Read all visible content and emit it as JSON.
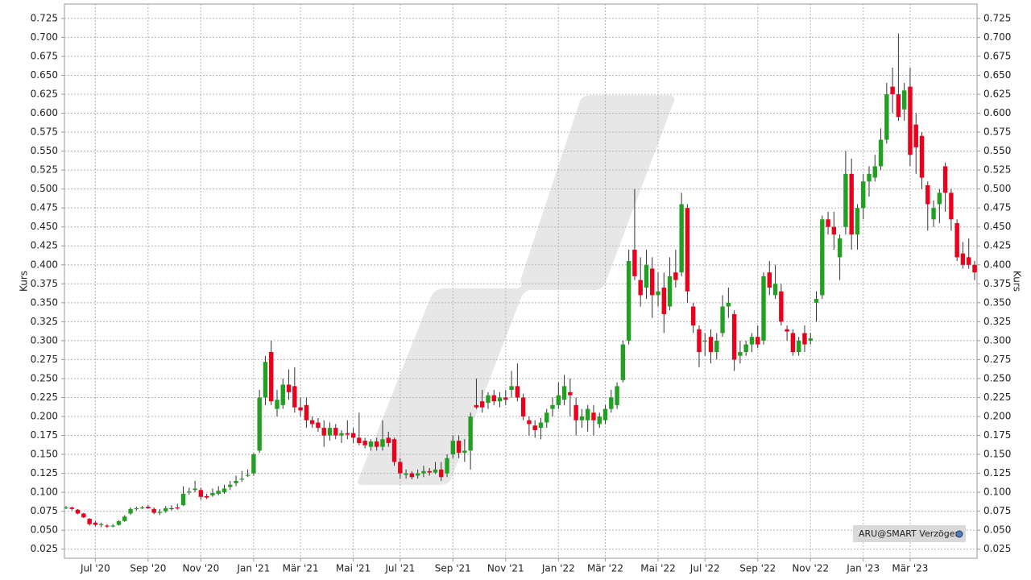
{
  "chart_data": {
    "type": "candlestick",
    "y_label": "Kurs",
    "source": "ARU@SMART Verzögert",
    "up_color": "#22a022",
    "down_color": "#e8001c",
    "ylim": [
      0.013,
      0.744
    ],
    "yticks": [
      {
        "value": 0.025,
        "label": "0.025"
      },
      {
        "value": 0.05,
        "label": "0.050"
      },
      {
        "value": 0.075,
        "label": "0.075"
      },
      {
        "value": 0.1,
        "label": "0.100"
      },
      {
        "value": 0.125,
        "label": "0.125"
      },
      {
        "value": 0.15,
        "label": "0.150"
      },
      {
        "value": 0.175,
        "label": "0.175"
      },
      {
        "value": 0.2,
        "label": "0.200"
      },
      {
        "value": 0.225,
        "label": "0.225"
      },
      {
        "value": 0.25,
        "label": "0.250"
      },
      {
        "value": 0.275,
        "label": "0.275"
      },
      {
        "value": 0.3,
        "label": "0.300"
      },
      {
        "value": 0.325,
        "label": "0.325"
      },
      {
        "value": 0.35,
        "label": "0.350"
      },
      {
        "value": 0.375,
        "label": "0.375"
      },
      {
        "value": 0.4,
        "label": "0.400"
      },
      {
        "value": 0.425,
        "label": "0.425"
      },
      {
        "value": 0.45,
        "label": "0.450"
      },
      {
        "value": 0.475,
        "label": "0.475"
      },
      {
        "value": 0.5,
        "label": "0.500"
      },
      {
        "value": 0.525,
        "label": "0.525"
      },
      {
        "value": 0.55,
        "label": "0.550"
      },
      {
        "value": 0.575,
        "label": "0.575"
      },
      {
        "value": 0.6,
        "label": "0.600"
      },
      {
        "value": 0.625,
        "label": "0.625"
      },
      {
        "value": 0.65,
        "label": "0.650"
      },
      {
        "value": 0.675,
        "label": "0.675"
      },
      {
        "value": 0.7,
        "label": "0.700"
      },
      {
        "value": 0.725,
        "label": "0.725"
      }
    ],
    "grid": true,
    "categories": [
      null,
      null,
      null,
      null,
      null,
      "Jul '20",
      null,
      null,
      null,
      null,
      null,
      null,
      null,
      null,
      "Sep '20",
      null,
      null,
      null,
      null,
      null,
      null,
      null,
      null,
      "Nov '20",
      null,
      null,
      null,
      null,
      null,
      null,
      null,
      null,
      "Jan '21",
      null,
      null,
      null,
      null,
      null,
      null,
      null,
      "Mär '21",
      null,
      null,
      null,
      null,
      null,
      null,
      null,
      null,
      "Mai '21",
      null,
      null,
      null,
      null,
      null,
      null,
      null,
      "Jul '21",
      null,
      null,
      null,
      null,
      null,
      null,
      null,
      null,
      "Sep '21",
      null,
      null,
      null,
      null,
      null,
      null,
      null,
      null,
      "Nov '21",
      null,
      null,
      null,
      null,
      null,
      null,
      null,
      null,
      "Jan '22",
      null,
      null,
      null,
      null,
      null,
      null,
      null,
      "Mär '22",
      null,
      null,
      null,
      null,
      null,
      null,
      null,
      null,
      "Mai '22",
      null,
      null,
      null,
      null,
      null,
      null,
      null,
      "Jul '22",
      null,
      null,
      null,
      null,
      null,
      null,
      null,
      null,
      "Sep '22",
      null,
      null,
      null,
      null,
      null,
      null,
      null,
      null,
      "Nov '22",
      null,
      null,
      null,
      null,
      null,
      null,
      null,
      null,
      "Jan '23",
      null,
      null,
      null,
      null,
      null,
      null,
      null,
      "Mär '23",
      null,
      null,
      null,
      null,
      null,
      null,
      null,
      null,
      null,
      null,
      null
    ],
    "open": [
      0.08,
      0.08,
      0.077,
      0.072,
      0.065,
      0.06,
      0.057,
      0.056,
      0.055,
      0.057,
      0.062,
      0.072,
      0.078,
      0.08,
      0.081,
      0.078,
      0.074,
      0.075,
      0.079,
      0.08,
      0.083,
      0.1,
      0.103,
      0.103,
      0.095,
      0.096,
      0.098,
      0.1,
      0.107,
      0.112,
      0.118,
      0.123,
      0.125,
      0.155,
      0.225,
      0.285,
      0.21,
      0.215,
      0.242,
      0.24,
      0.212,
      0.215,
      0.195,
      0.192,
      0.185,
      0.175,
      0.185,
      0.175,
      0.178,
      0.178,
      0.172,
      0.168,
      0.16,
      0.167,
      0.16,
      0.172,
      0.17,
      0.14,
      0.123,
      0.125,
      0.122,
      0.125,
      0.128,
      0.126,
      0.13,
      0.125,
      0.15,
      0.168,
      0.152,
      0.155,
      0.215,
      0.22,
      0.218,
      0.228,
      0.22,
      0.225,
      0.235,
      0.24,
      0.225,
      0.195,
      0.188,
      0.185,
      0.192,
      0.21,
      0.215,
      0.222,
      0.232,
      0.215,
      0.195,
      0.195,
      0.205,
      0.19,
      0.195,
      0.21,
      0.215,
      0.248,
      0.3,
      0.42,
      0.38,
      0.37,
      0.395,
      0.36,
      0.37,
      0.345,
      0.39,
      0.39,
      0.475,
      0.345,
      0.315,
      0.3,
      0.305,
      0.285,
      0.31,
      0.345,
      0.335,
      0.28,
      0.285,
      0.295,
      0.305,
      0.3,
      0.39,
      0.36,
      0.365,
      0.315,
      0.31,
      0.285,
      0.31,
      0.3,
      0.35,
      0.36,
      0.46,
      0.45,
      0.41,
      0.45,
      0.52,
      0.44,
      0.475,
      0.51,
      0.515,
      0.53,
      0.565,
      0.635,
      0.625,
      0.605,
      0.635,
      0.585,
      0.57,
      0.505,
      0.46,
      0.48,
      0.53,
      0.495,
      0.455,
      0.415,
      0.41,
      0.4
    ],
    "high": [
      0.082,
      0.081,
      0.078,
      0.073,
      0.066,
      0.062,
      0.06,
      0.058,
      0.058,
      0.063,
      0.07,
      0.08,
      0.081,
      0.082,
      0.083,
      0.08,
      0.078,
      0.082,
      0.083,
      0.085,
      0.108,
      0.106,
      0.115,
      0.106,
      0.098,
      0.105,
      0.108,
      0.11,
      0.115,
      0.122,
      0.128,
      0.13,
      0.152,
      0.235,
      0.28,
      0.3,
      0.235,
      0.25,
      0.262,
      0.265,
      0.225,
      0.225,
      0.2,
      0.198,
      0.195,
      0.192,
      0.19,
      0.182,
      0.195,
      0.185,
      0.205,
      0.172,
      0.17,
      0.172,
      0.195,
      0.18,
      0.172,
      0.145,
      0.13,
      0.128,
      0.13,
      0.135,
      0.132,
      0.14,
      0.14,
      0.15,
      0.175,
      0.175,
      0.17,
      0.205,
      0.25,
      0.235,
      0.232,
      0.235,
      0.232,
      0.235,
      0.26,
      0.27,
      0.23,
      0.2,
      0.195,
      0.198,
      0.21,
      0.225,
      0.245,
      0.255,
      0.25,
      0.225,
      0.21,
      0.215,
      0.215,
      0.205,
      0.215,
      0.235,
      0.245,
      0.3,
      0.42,
      0.5,
      0.41,
      0.42,
      0.41,
      0.39,
      0.39,
      0.41,
      0.42,
      0.495,
      0.48,
      0.35,
      0.32,
      0.31,
      0.315,
      0.31,
      0.36,
      0.37,
      0.34,
      0.3,
      0.3,
      0.31,
      0.32,
      0.39,
      0.405,
      0.4,
      0.375,
      0.32,
      0.315,
      0.305,
      0.32,
      0.31,
      0.365,
      0.465,
      0.47,
      0.47,
      0.44,
      0.55,
      0.54,
      0.48,
      0.52,
      0.53,
      0.545,
      0.58,
      0.64,
      0.66,
      0.705,
      0.64,
      0.66,
      0.6,
      0.575,
      0.51,
      0.485,
      0.5,
      0.535,
      0.5,
      0.46,
      0.43,
      0.435,
      0.405
    ],
    "low": [
      0.078,
      0.076,
      0.071,
      0.066,
      0.056,
      0.055,
      0.054,
      0.053,
      0.054,
      0.056,
      0.061,
      0.07,
      0.076,
      0.078,
      0.078,
      0.071,
      0.07,
      0.073,
      0.076,
      0.077,
      0.082,
      0.097,
      0.1,
      0.09,
      0.091,
      0.094,
      0.096,
      0.098,
      0.103,
      0.108,
      0.114,
      0.12,
      0.122,
      0.152,
      0.215,
      0.215,
      0.2,
      0.21,
      0.222,
      0.205,
      0.2,
      0.185,
      0.185,
      0.18,
      0.16,
      0.168,
      0.17,
      0.165,
      0.17,
      0.165,
      0.162,
      0.158,
      0.155,
      0.155,
      0.155,
      0.16,
      0.135,
      0.118,
      0.118,
      0.117,
      0.118,
      0.12,
      0.122,
      0.124,
      0.115,
      0.12,
      0.145,
      0.145,
      0.14,
      0.13,
      0.21,
      0.205,
      0.21,
      0.215,
      0.212,
      0.215,
      0.225,
      0.22,
      0.195,
      0.175,
      0.172,
      0.17,
      0.185,
      0.2,
      0.21,
      0.215,
      0.2,
      0.175,
      0.185,
      0.18,
      0.175,
      0.185,
      0.19,
      0.205,
      0.21,
      0.245,
      0.295,
      0.38,
      0.345,
      0.355,
      0.33,
      0.345,
      0.31,
      0.34,
      0.37,
      0.385,
      0.35,
      0.31,
      0.265,
      0.28,
      0.27,
      0.275,
      0.305,
      0.33,
      0.26,
      0.27,
      0.28,
      0.285,
      0.29,
      0.295,
      0.36,
      0.355,
      0.32,
      0.3,
      0.28,
      0.28,
      0.285,
      0.295,
      0.325,
      0.355,
      0.44,
      0.42,
      0.38,
      0.44,
      0.42,
      0.42,
      0.46,
      0.49,
      0.51,
      0.525,
      0.56,
      0.6,
      0.59,
      0.59,
      0.53,
      0.52,
      0.5,
      0.445,
      0.45,
      0.455,
      0.47,
      0.445,
      0.405,
      0.395,
      0.395,
      0.38
    ],
    "close": [
      0.08,
      0.078,
      0.072,
      0.067,
      0.058,
      0.057,
      0.058,
      0.055,
      0.056,
      0.062,
      0.068,
      0.078,
      0.079,
      0.08,
      0.079,
      0.073,
      0.074,
      0.079,
      0.078,
      0.079,
      0.098,
      0.101,
      0.105,
      0.094,
      0.093,
      0.099,
      0.102,
      0.105,
      0.11,
      0.115,
      0.118,
      0.123,
      0.15,
      0.225,
      0.272,
      0.22,
      0.222,
      0.242,
      0.232,
      0.212,
      0.208,
      0.195,
      0.19,
      0.185,
      0.175,
      0.185,
      0.175,
      0.178,
      0.176,
      0.172,
      0.165,
      0.162,
      0.167,
      0.16,
      0.17,
      0.165,
      0.14,
      0.125,
      0.125,
      0.12,
      0.125,
      0.128,
      0.126,
      0.13,
      0.12,
      0.145,
      0.168,
      0.152,
      0.155,
      0.2,
      0.212,
      0.212,
      0.228,
      0.22,
      0.225,
      0.222,
      0.24,
      0.225,
      0.2,
      0.19,
      0.182,
      0.192,
      0.205,
      0.215,
      0.228,
      0.24,
      0.228,
      0.195,
      0.2,
      0.21,
      0.195,
      0.2,
      0.21,
      0.225,
      0.24,
      0.295,
      0.405,
      0.385,
      0.36,
      0.4,
      0.36,
      0.365,
      0.335,
      0.385,
      0.38,
      0.48,
      0.365,
      0.32,
      0.285,
      0.3,
      0.285,
      0.3,
      0.345,
      0.35,
      0.275,
      0.285,
      0.295,
      0.305,
      0.295,
      0.385,
      0.37,
      0.375,
      0.325,
      0.312,
      0.285,
      0.3,
      0.295,
      0.303,
      0.355,
      0.46,
      0.45,
      0.44,
      0.435,
      0.52,
      0.44,
      0.475,
      0.51,
      0.52,
      0.53,
      0.565,
      0.625,
      0.625,
      0.595,
      0.63,
      0.545,
      0.555,
      0.515,
      0.48,
      0.475,
      0.495,
      0.495,
      0.46,
      0.41,
      0.4,
      0.4,
      0.39
    ]
  }
}
